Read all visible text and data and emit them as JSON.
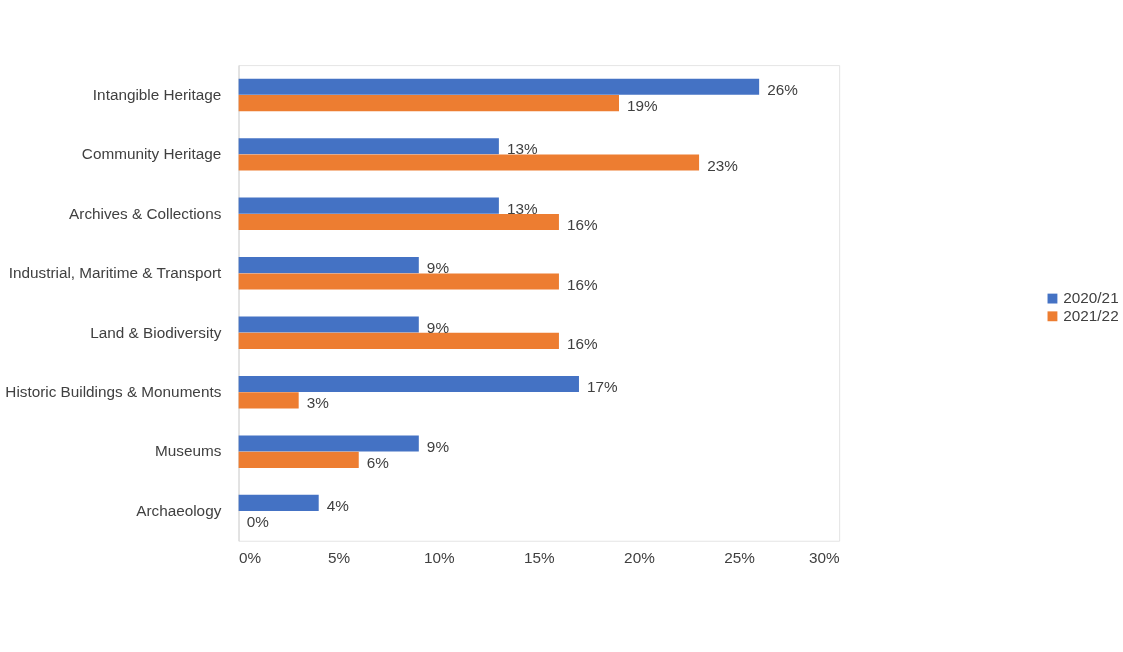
{
  "chart_data": {
    "type": "bar",
    "orientation": "horizontal",
    "categories": [
      "Intangible Heritage",
      "Community Heritage",
      "Archives & Collections",
      "Industrial, Maritime & Transport",
      "Land & Biodiversity",
      "Historic Buildings & Monuments",
      "Museums",
      "Archaeology"
    ],
    "series": [
      {
        "name": "2020/21",
        "color": "#4472c4",
        "values": [
          26,
          13,
          13,
          9,
          9,
          17,
          9,
          4
        ],
        "value_labels": [
          "26%",
          "13%",
          "13%",
          "9%",
          "9%",
          "17%",
          "9%",
          "4%"
        ]
      },
      {
        "name": "2021/22",
        "color": "#ed7d31",
        "values": [
          19,
          23,
          16,
          16,
          16,
          3,
          6,
          0
        ],
        "value_labels": [
          "19%",
          "23%",
          "16%",
          "16%",
          "16%",
          "3%",
          "6%",
          "0%"
        ]
      }
    ],
    "xlim": [
      0,
      30
    ],
    "xticks": [
      {
        "value": 0,
        "label": "0%"
      },
      {
        "value": 5,
        "label": "5%"
      },
      {
        "value": 10,
        "label": "10%"
      },
      {
        "value": 15,
        "label": "15%"
      },
      {
        "value": 20,
        "label": "20%"
      },
      {
        "value": 25,
        "label": "25%"
      },
      {
        "value": 30,
        "label": "30%"
      }
    ],
    "grid": false,
    "legend": "right"
  }
}
